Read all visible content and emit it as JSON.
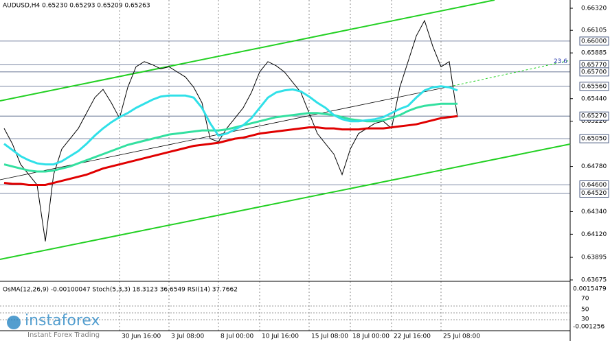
{
  "chart_data": {
    "type": "line",
    "title": "AUDUSD,H4  0.65230 0.65293 0.65209 0.65263",
    "categories": [
      null,
      null,
      null,
      null,
      null,
      null,
      null,
      null,
      null,
      null,
      null,
      null,
      null,
      null,
      "30 Jun 16:00",
      null,
      null,
      null,
      null,
      null,
      "3 Jul 08:00",
      null,
      null,
      null,
      null,
      null,
      "8 Jul 00:00",
      null,
      null,
      null,
      null,
      "10 Jul 16:00",
      null,
      null,
      null,
      null,
      null,
      "15 Jul 08:00",
      null,
      null,
      null,
      null,
      "18 Jul 00:00",
      null,
      null,
      null,
      null,
      "22 Jul 16:00",
      null,
      null,
      null,
      null,
      null,
      "25 Jul 08:00",
      null,
      null
    ],
    "series": [
      {
        "color": "#000000",
        "values": [
          0.6515,
          0.65,
          0.648,
          0.647,
          0.646,
          0.6405,
          0.647,
          0.6495,
          0.6505,
          0.6515,
          0.653,
          0.6545,
          0.6553,
          0.654,
          0.6525,
          0.6555,
          0.6575,
          0.658,
          0.6577,
          0.6573,
          0.6575,
          0.657,
          0.6565,
          0.6555,
          0.654,
          0.6505,
          0.6502,
          0.6515,
          0.6525,
          0.6535,
          0.655,
          0.657,
          0.658,
          0.6576,
          0.657,
          0.656,
          0.655,
          0.653,
          0.651,
          0.65,
          0.649,
          0.647,
          0.6495,
          0.651,
          0.6515,
          0.652,
          0.6522,
          0.6515,
          0.6555,
          0.658,
          0.6605,
          0.662,
          0.6595,
          0.6575,
          0.658,
          0.6526
        ]
      },
      {
        "color": "#e00000",
        "values": [
          0.6462,
          0.6461,
          0.6461,
          0.646,
          0.646,
          0.646,
          0.6462,
          0.6464,
          0.6466,
          0.6468,
          0.647,
          0.6473,
          0.6476,
          0.6478,
          0.648,
          0.6482,
          0.6484,
          0.6486,
          0.6488,
          0.649,
          0.6492,
          0.6494,
          0.6496,
          0.6498,
          0.6499,
          0.65,
          0.6501,
          0.6503,
          0.6505,
          0.6506,
          0.6508,
          0.651,
          0.6511,
          0.6512,
          0.6513,
          0.6514,
          0.6515,
          0.6516,
          0.6516,
          0.6515,
          0.6515,
          0.6514,
          0.6514,
          0.6514,
          0.6515,
          0.6515,
          0.6515,
          0.6516,
          0.6517,
          0.6518,
          0.6519,
          0.6521,
          0.6523,
          0.6525,
          0.6526,
          0.6527
        ]
      },
      {
        "color": "#33e0a0",
        "values": [
          0.648,
          0.6478,
          0.6476,
          0.6474,
          0.6473,
          0.6473,
          0.6474,
          0.6476,
          0.6478,
          0.6481,
          0.6484,
          0.6487,
          0.649,
          0.6493,
          0.6496,
          0.6499,
          0.6501,
          0.6503,
          0.6505,
          0.6507,
          0.6509,
          0.651,
          0.6511,
          0.6512,
          0.6513,
          0.6513,
          0.6513,
          0.6514,
          0.6516,
          0.6518,
          0.652,
          0.6522,
          0.6524,
          0.6526,
          0.6527,
          0.6528,
          0.6529,
          0.653,
          0.653,
          0.6529,
          0.6528,
          0.6526,
          0.6524,
          0.6523,
          0.6522,
          0.6522,
          0.6523,
          0.6525,
          0.6528,
          0.6532,
          0.6535,
          0.6537,
          0.6538,
          0.6539,
          0.6539,
          0.6539
        ]
      },
      {
        "color": "#30e0e8",
        "values": [
          0.65,
          0.6494,
          0.6488,
          0.6484,
          0.6481,
          0.648,
          0.648,
          0.6483,
          0.6488,
          0.6493,
          0.65,
          0.6508,
          0.6515,
          0.6521,
          0.6526,
          0.653,
          0.6535,
          0.6539,
          0.6543,
          0.6546,
          0.6547,
          0.6547,
          0.6547,
          0.6545,
          0.6535,
          0.652,
          0.6508,
          0.651,
          0.6514,
          0.6518,
          0.6525,
          0.6535,
          0.6545,
          0.655,
          0.6552,
          0.6553,
          0.6551,
          0.6546,
          0.654,
          0.6535,
          0.6528,
          0.6524,
          0.6522,
          0.6522,
          0.6523,
          0.6524,
          0.6526,
          0.653,
          0.6534,
          0.6537,
          0.6545,
          0.6552,
          0.6555,
          0.6556,
          0.6555,
          0.6552
        ]
      }
    ],
    "ylim": [
      0.63675,
      0.6632
    ],
    "yticks": [
      {
        "value": 0.6632,
        "label": "0.66320"
      },
      {
        "value": 0.66105,
        "label": "0.66105"
      },
      {
        "value": 0.65885,
        "label": "0.65885"
      },
      {
        "value": 0.6544,
        "label": "0.65440"
      },
      {
        "value": 0.6522,
        "label": "0.65220"
      },
      {
        "value": 0.6478,
        "label": "0.64780"
      },
      {
        "value": 0.6434,
        "label": "0.64340"
      },
      {
        "value": 0.6412,
        "label": "0.64120"
      },
      {
        "value": 0.63895,
        "label": "0.63895"
      },
      {
        "value": 0.63675,
        "label": "0.63675"
      }
    ],
    "levels": [
      {
        "value": 0.66,
        "label": "0.66000"
      },
      {
        "value": 0.6577,
        "label": "0.65770"
      },
      {
        "value": 0.657,
        "label": "0.65700"
      },
      {
        "value": 0.6556,
        "label": "0.65560"
      },
      {
        "value": 0.6527,
        "label": "0.65270"
      },
      {
        "value": 0.6505,
        "label": "0.65050"
      },
      {
        "value": 0.646,
        "label": "0.64600"
      },
      {
        "value": 0.6452,
        "label": "0.64520"
      }
    ],
    "fibo_label": "23.6",
    "grid": true,
    "indicator": {
      "title": "OsMA(12,26,9) -0.00100047  Stoch(5,3,3) 18.3123 36.6549  RSI(14) 37.7662",
      "labels": [
        "0.0015479",
        "70",
        "50",
        "30",
        "-0.001256"
      ]
    },
    "watermark": {
      "brand": "instaforex",
      "tagline": "Instant Forex Trading"
    }
  }
}
